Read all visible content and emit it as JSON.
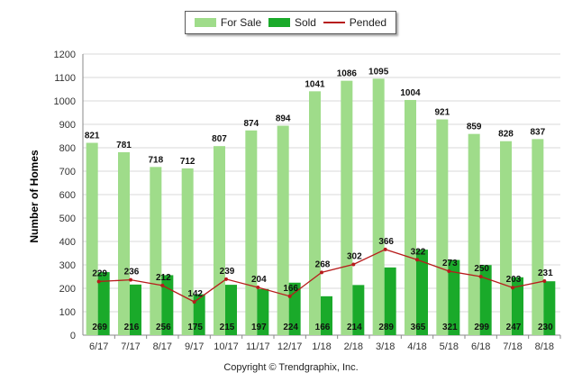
{
  "legend": {
    "for_sale": "For Sale",
    "sold": "Sold",
    "pended": "Pended"
  },
  "copyright": "Copyright © Trendgraphix, Inc.",
  "colors": {
    "for_sale": "#9fdc8a",
    "sold": "#1aaa2a",
    "pended": "#b71c1c",
    "grid": "#d9d9d9"
  },
  "chart_data": {
    "type": "bar",
    "title": "",
    "xlabel": "",
    "ylabel": "Number of Homes",
    "ylim": [
      0,
      1200
    ],
    "yticks": [
      0,
      100,
      200,
      300,
      400,
      500,
      600,
      700,
      800,
      900,
      1000,
      1100,
      1200
    ],
    "grid": true,
    "legend_position": "top-center",
    "categories": [
      "6/17",
      "7/17",
      "8/17",
      "9/17",
      "10/17",
      "11/17",
      "12/17",
      "1/18",
      "2/18",
      "3/18",
      "4/18",
      "5/18",
      "6/18",
      "7/18",
      "8/18"
    ],
    "series": [
      {
        "name": "For Sale",
        "type": "bar",
        "values": [
          821,
          781,
          718,
          712,
          807,
          874,
          894,
          1041,
          1086,
          1095,
          1004,
          921,
          859,
          828,
          837
        ]
      },
      {
        "name": "Sold",
        "type": "bar",
        "values": [
          269,
          216,
          256,
          175,
          215,
          197,
          224,
          166,
          214,
          289,
          365,
          321,
          299,
          247,
          230
        ]
      },
      {
        "name": "Pended",
        "type": "line",
        "values": [
          229,
          236,
          212,
          142,
          239,
          204,
          166,
          268,
          302,
          366,
          322,
          273,
          250,
          203,
          231
        ]
      }
    ]
  }
}
